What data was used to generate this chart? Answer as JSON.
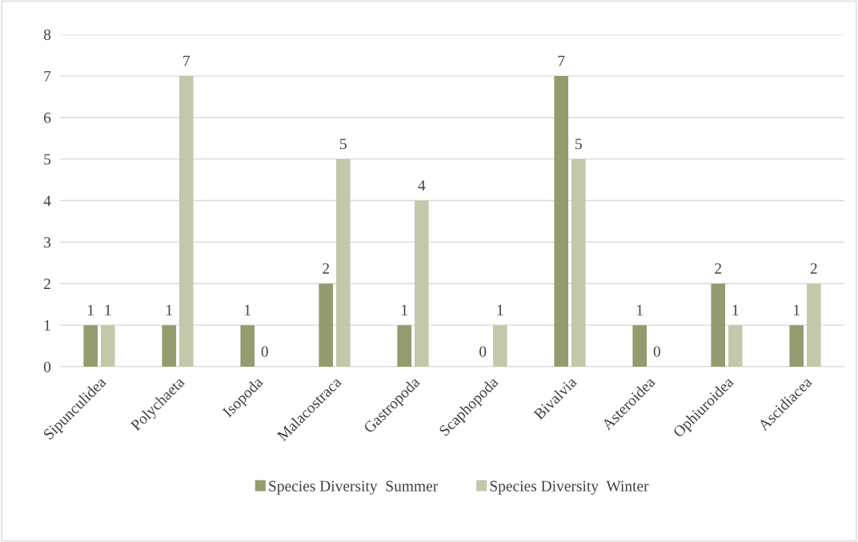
{
  "chart_data": {
    "type": "bar",
    "categories": [
      "Sipunculidea",
      "Polychaeta",
      "Isopoda",
      "Malacostraca",
      "Gastropoda",
      "Scaphopoda",
      "Bivalvia",
      "Asteroidea",
      "Ophiuroidea",
      "Ascidiacea"
    ],
    "series": [
      {
        "name": "Species Diversity  Summer",
        "color": "#939b6f",
        "values": [
          1,
          1,
          1,
          2,
          1,
          0,
          7,
          1,
          2,
          1
        ]
      },
      {
        "name": "Species Diversity  Winter",
        "color": "#c3c8aa",
        "values": [
          1,
          7,
          0,
          5,
          4,
          1,
          5,
          0,
          1,
          2
        ]
      }
    ],
    "ylim": [
      0,
      8
    ],
    "yticks": [
      0,
      1,
      2,
      3,
      4,
      5,
      6,
      7,
      8
    ],
    "grid": "y",
    "legend": "bottom",
    "data_labels": true
  }
}
